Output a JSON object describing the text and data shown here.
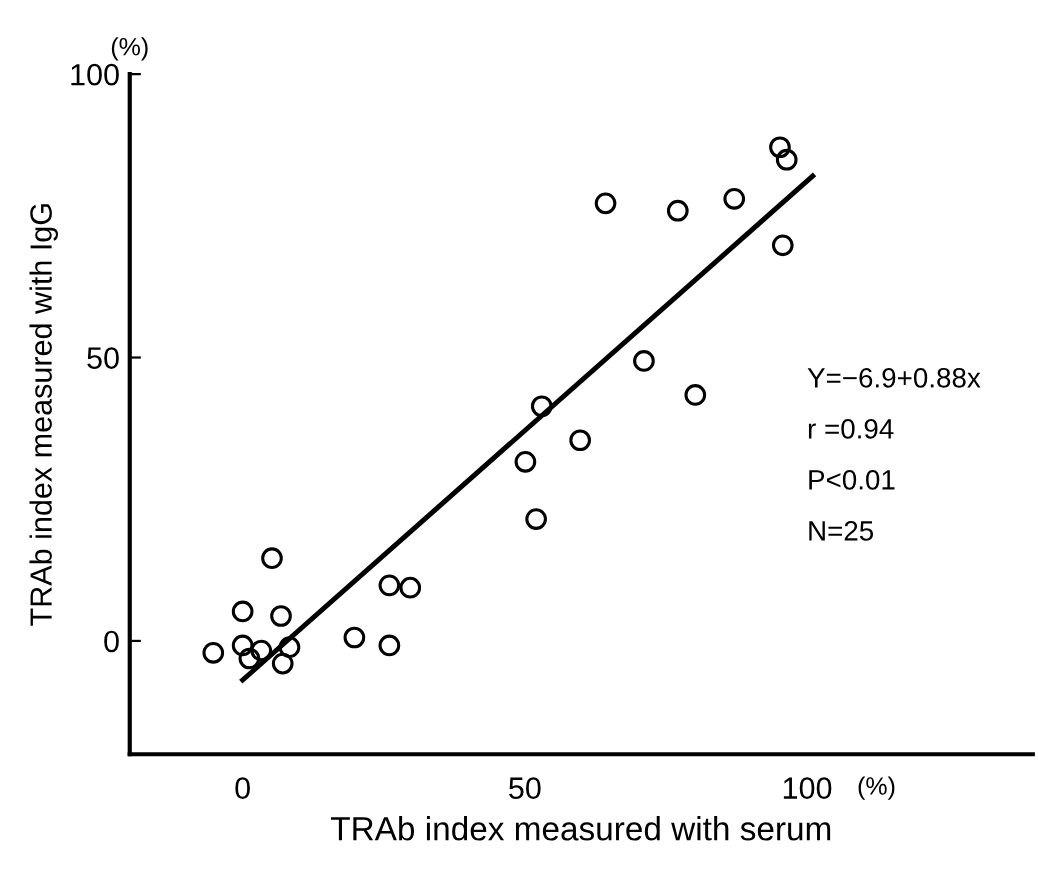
{
  "chart_data": {
    "type": "scatter",
    "xlabel": "TRAb index measured with serum",
    "ylabel": "TRAb index measured with IgG",
    "xlim": [
      -20,
      140
    ],
    "ylim": [
      -20,
      100
    ],
    "xticks": [
      0,
      50,
      100
    ],
    "yticks": [
      0,
      50,
      100
    ],
    "grid": false,
    "legend": false,
    "series": [
      {
        "marker": "circle",
        "color": "#000000",
        "x": [
          -5.2,
          0,
          0,
          1.2,
          3.3,
          5.2,
          6.8,
          7.1,
          8.3,
          19.8,
          26,
          26,
          29.7,
          50.1,
          52,
          53,
          59.8,
          71.1,
          80.2,
          64.3,
          77.1,
          87.1,
          95.2,
          96.4,
          95.7
        ],
        "values": [
          -2.1,
          5.2,
          -0.8,
          -3.1,
          -1.7,
          14.6,
          4.4,
          -4,
          -1.1,
          0.6,
          9.8,
          -0.8,
          9.4,
          31.6,
          21.5,
          41.4,
          35.4,
          49.4,
          43.4,
          77.2,
          75.9,
          78,
          87.1,
          84.9,
          69.8
        ]
      },
      {
        "type": "line",
        "marker": "none",
        "color": "#000000",
        "x": [
          0,
          101
        ],
        "values": [
          -6.9,
          82
        ]
      }
    ],
    "annotations": [
      "(%)",
      "(%)",
      "Y=−6.9+0.88x",
      "r =0.94",
      "P<0.01",
      "N=25"
    ]
  }
}
